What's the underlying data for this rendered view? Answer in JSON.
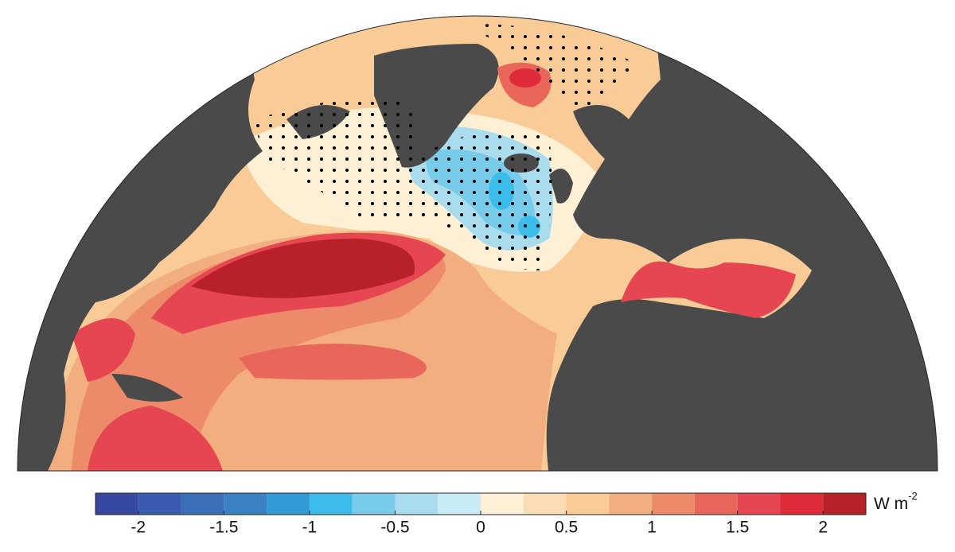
{
  "colorbar": {
    "levels": [
      -2.25,
      -2,
      -1.75,
      -1.5,
      -1.25,
      -1,
      -0.75,
      -0.5,
      -0.25,
      0,
      0.25,
      0.5,
      0.75,
      1,
      1.25,
      1.5,
      1.75,
      2,
      2.25
    ],
    "colors": [
      "#37489f",
      "#3a5cb0",
      "#3b6fb8",
      "#3a82c4",
      "#2f9ad4",
      "#3cbde9",
      "#79cbea",
      "#a9dcec",
      "#c8ecf6",
      "#fdf0d5",
      "#fbdcb5",
      "#f8cb97",
      "#f2ae7e",
      "#ed8a6a",
      "#e8675a",
      "#e54651",
      "#e02b3a",
      "#b82127"
    ],
    "ticks": [
      -2,
      -1.5,
      -1,
      -0.5,
      0,
      0.5,
      1,
      1.5,
      2
    ],
    "unit": "W m",
    "unit_exponent": "-2"
  }
}
